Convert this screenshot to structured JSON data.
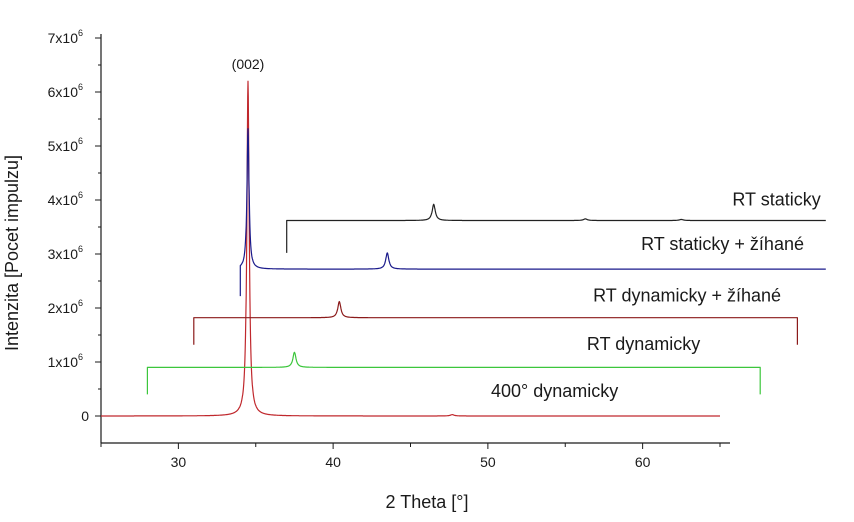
{
  "chart_data": {
    "type": "line",
    "xlabel": "2 Theta [°]",
    "ylabel": "Intenzita [Pocet impulzu]",
    "xlim": [
      25,
      65
    ],
    "ylim": [
      -500000,
      7000000
    ],
    "x_ticks": [
      30,
      40,
      50,
      60
    ],
    "y_ticks": [
      {
        "value": 0,
        "label": "0"
      },
      {
        "value": 1000000,
        "label": "1x10",
        "exp": "6"
      },
      {
        "value": 2000000,
        "label": "2x10",
        "exp": "6"
      },
      {
        "value": 3000000,
        "label": "3x10",
        "exp": "6"
      },
      {
        "value": 4000000,
        "label": "4x10",
        "exp": "6"
      },
      {
        "value": 5000000,
        "label": "5x10",
        "exp": "6"
      },
      {
        "value": 6000000,
        "label": "6x10",
        "exp": "6"
      },
      {
        "value": 7000000,
        "label": "7x10",
        "exp": "6"
      }
    ],
    "grid": false,
    "legend": "none",
    "annotations": [
      {
        "text": "(002)",
        "x": 34.5,
        "y": 6500000
      }
    ],
    "series": [
      {
        "name": "400° dynamicky",
        "color": "#c0282d",
        "x_range": [
          25,
          65
        ],
        "baseline": 0,
        "start_tick": null,
        "peaks": [
          {
            "x": 34.5,
            "height": 6200000,
            "width": 0.09
          },
          {
            "x": 47.7,
            "height": 25000,
            "width": 0.15
          }
        ],
        "label_x": 50.2,
        "label_y": 350000
      },
      {
        "name": "RT dynamicky",
        "color": "#3cc63c",
        "x_range": [
          28,
          67.6
        ],
        "baseline": 900000,
        "start_tick": 28,
        "end_tick": 67.6,
        "tick_depth": 500000,
        "peaks": [
          {
            "x": 37.5,
            "height": 280000,
            "width": 0.12
          }
        ],
        "label_x": 56.4,
        "label_y": 1220000
      },
      {
        "name": "RT dynamicky + žíhané",
        "color": "#8b1a1a",
        "x_range": [
          31,
          70
        ],
        "baseline": 1820000,
        "start_tick": 31,
        "end_tick": 70,
        "tick_depth": 500000,
        "peaks": [
          {
            "x": 40.4,
            "height": 300000,
            "width": 0.12
          }
        ],
        "label_x": 56.8,
        "label_y": 2120000
      },
      {
        "name": "RT staticky + žíhané",
        "color": "#1a1a8b",
        "x_range": [
          34,
          73
        ],
        "baseline": 2720000,
        "start_tick": 34,
        "tick_depth": 500000,
        "peaks": [
          {
            "x": 34.5,
            "height": 2600000,
            "width": 0.08
          },
          {
            "x": 43.5,
            "height": 300000,
            "width": 0.12
          }
        ],
        "label_x": 59.9,
        "label_y": 3070000
      },
      {
        "name": "RT staticky",
        "color": "#222222",
        "x_range": [
          37,
          76
        ],
        "baseline": 3620000,
        "start_tick": 37,
        "tick_depth": 600000,
        "peaks": [
          {
            "x": 46.5,
            "height": 300000,
            "width": 0.12
          },
          {
            "x": 56.3,
            "height": 30000,
            "width": 0.15
          },
          {
            "x": 62.5,
            "height": 20000,
            "width": 0.15
          }
        ],
        "label_x": 65.8,
        "label_y": 3900000
      }
    ]
  }
}
